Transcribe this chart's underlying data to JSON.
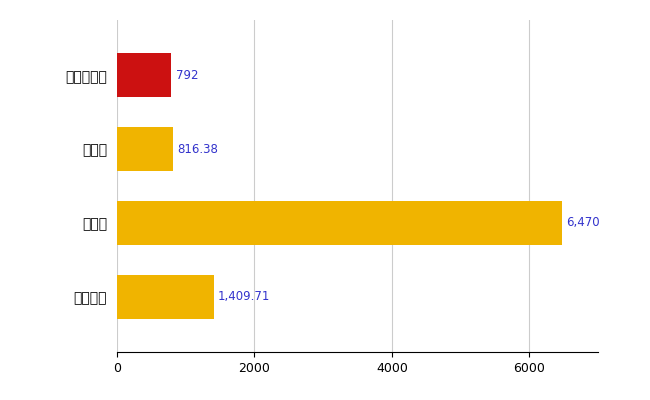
{
  "categories": [
    "おいらせ町",
    "県平均",
    "県最大",
    "全国平均"
  ],
  "values": [
    792,
    816.38,
    6470,
    1409.71
  ],
  "labels": [
    "792",
    "816.38",
    "6,470",
    "1,409.71"
  ],
  "bar_colors": [
    "#cc1111",
    "#f0b400",
    "#f0b400",
    "#f0b400"
  ],
  "xlim": [
    0,
    7000
  ],
  "xticks": [
    0,
    2000,
    4000,
    6000
  ],
  "background_color": "#ffffff",
  "grid_color": "#cccccc",
  "label_color": "#3333cc",
  "bar_height": 0.6,
  "figsize": [
    6.5,
    4.0
  ],
  "dpi": 100
}
